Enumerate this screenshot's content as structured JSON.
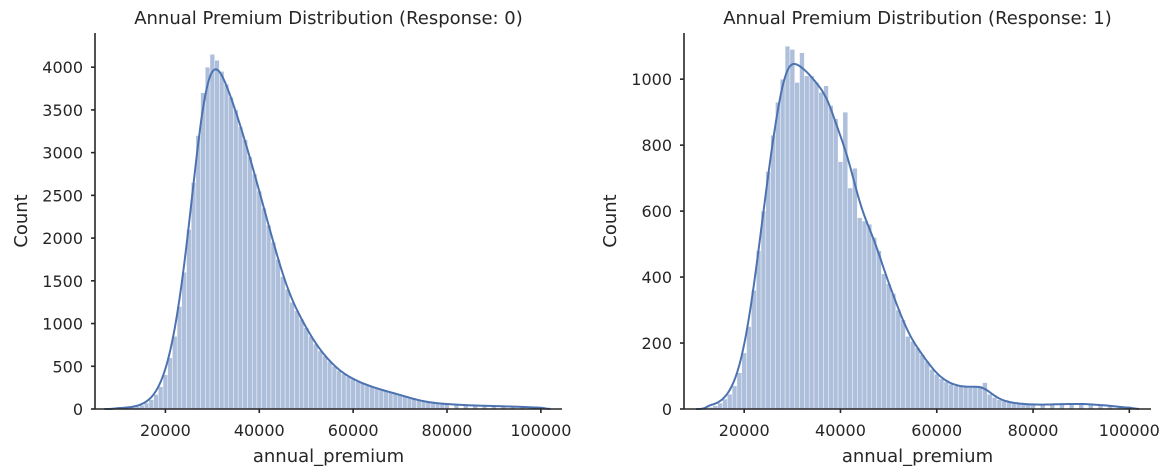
{
  "figure": {
    "background": "#ffffff"
  },
  "style": {
    "series_color": "#4c72b0",
    "axis_color": "#262626"
  },
  "chart_data": [
    {
      "type": "histogram",
      "title": "Annual Premium Distribution (Response: 0)",
      "xlabel": "annual_premium",
      "ylabel": "Count",
      "xlim": [
        5000,
        104500
      ],
      "ylim": [
        0,
        4400
      ],
      "xticks": [
        20000,
        40000,
        60000,
        80000,
        100000
      ],
      "yticks": [
        0,
        500,
        1000,
        1500,
        2000,
        2500,
        3000,
        3500,
        4000
      ],
      "grid": false,
      "kde": true,
      "bin_width": 1000,
      "bins": [
        {
          "x": 10000,
          "count": 5
        },
        {
          "x": 11000,
          "count": 10
        },
        {
          "x": 12000,
          "count": 15
        },
        {
          "x": 13000,
          "count": 22
        },
        {
          "x": 14000,
          "count": 32
        },
        {
          "x": 15000,
          "count": 45
        },
        {
          "x": 16000,
          "count": 70
        },
        {
          "x": 17000,
          "count": 110
        },
        {
          "x": 18000,
          "count": 170
        },
        {
          "x": 19000,
          "count": 260
        },
        {
          "x": 20000,
          "count": 400
        },
        {
          "x": 21000,
          "count": 600
        },
        {
          "x": 22000,
          "count": 850
        },
        {
          "x": 23000,
          "count": 1200
        },
        {
          "x": 24000,
          "count": 1600
        },
        {
          "x": 25000,
          "count": 2100
        },
        {
          "x": 26000,
          "count": 2650
        },
        {
          "x": 27000,
          "count": 3200
        },
        {
          "x": 28000,
          "count": 3700
        },
        {
          "x": 29000,
          "count": 4000
        },
        {
          "x": 30000,
          "count": 4150
        },
        {
          "x": 31000,
          "count": 4080
        },
        {
          "x": 32000,
          "count": 3950
        },
        {
          "x": 33000,
          "count": 3800
        },
        {
          "x": 34000,
          "count": 3650
        },
        {
          "x": 35000,
          "count": 3500
        },
        {
          "x": 36000,
          "count": 3300
        },
        {
          "x": 37000,
          "count": 3150
        },
        {
          "x": 38000,
          "count": 2950
        },
        {
          "x": 39000,
          "count": 2750
        },
        {
          "x": 40000,
          "count": 2550
        },
        {
          "x": 41000,
          "count": 2350
        },
        {
          "x": 42000,
          "count": 2150
        },
        {
          "x": 43000,
          "count": 1950
        },
        {
          "x": 44000,
          "count": 1750
        },
        {
          "x": 45000,
          "count": 1550
        },
        {
          "x": 46000,
          "count": 1400
        },
        {
          "x": 47000,
          "count": 1250
        },
        {
          "x": 48000,
          "count": 1150
        },
        {
          "x": 49000,
          "count": 1050
        },
        {
          "x": 50000,
          "count": 950
        },
        {
          "x": 51000,
          "count": 850
        },
        {
          "x": 52000,
          "count": 760
        },
        {
          "x": 53000,
          "count": 680
        },
        {
          "x": 54000,
          "count": 620
        },
        {
          "x": 55000,
          "count": 560
        },
        {
          "x": 56000,
          "count": 500
        },
        {
          "x": 57000,
          "count": 450
        },
        {
          "x": 58000,
          "count": 410
        },
        {
          "x": 59000,
          "count": 380
        },
        {
          "x": 60000,
          "count": 350
        },
        {
          "x": 61000,
          "count": 320
        },
        {
          "x": 62000,
          "count": 300
        },
        {
          "x": 63000,
          "count": 280
        },
        {
          "x": 64000,
          "count": 260
        },
        {
          "x": 65000,
          "count": 240
        },
        {
          "x": 66000,
          "count": 225
        },
        {
          "x": 67000,
          "count": 210
        },
        {
          "x": 68000,
          "count": 195
        },
        {
          "x": 69000,
          "count": 180
        },
        {
          "x": 70000,
          "count": 165
        },
        {
          "x": 71000,
          "count": 150
        },
        {
          "x": 72000,
          "count": 130
        },
        {
          "x": 73000,
          "count": 115
        },
        {
          "x": 74000,
          "count": 100
        },
        {
          "x": 75000,
          "count": 90
        },
        {
          "x": 76000,
          "count": 80
        },
        {
          "x": 77000,
          "count": 72
        },
        {
          "x": 78000,
          "count": 66
        },
        {
          "x": 79000,
          "count": 60
        },
        {
          "x": 80000,
          "count": 55
        },
        {
          "x": 82000,
          "count": 50
        },
        {
          "x": 84000,
          "count": 45
        },
        {
          "x": 86000,
          "count": 40
        },
        {
          "x": 88000,
          "count": 38
        },
        {
          "x": 90000,
          "count": 35
        },
        {
          "x": 92000,
          "count": 32
        },
        {
          "x": 94000,
          "count": 28
        },
        {
          "x": 96000,
          "count": 25
        },
        {
          "x": 98000,
          "count": 20
        },
        {
          "x": 100000,
          "count": 12
        }
      ]
    },
    {
      "type": "histogram",
      "title": "Annual Premium Distribution (Response: 1)",
      "xlabel": "annual_premium",
      "ylabel": "Count",
      "xlim": [
        7500,
        104500
      ],
      "ylim": [
        0,
        1140
      ],
      "xticks": [
        20000,
        40000,
        60000,
        80000,
        100000
      ],
      "yticks": [
        0,
        200,
        400,
        600,
        800,
        1000
      ],
      "grid": false,
      "kde": true,
      "bin_width": 1000,
      "bins": [
        {
          "x": 13000,
          "count": 5
        },
        {
          "x": 14000,
          "count": 10
        },
        {
          "x": 15000,
          "count": 18
        },
        {
          "x": 16000,
          "count": 30
        },
        {
          "x": 17000,
          "count": 45
        },
        {
          "x": 18000,
          "count": 70
        },
        {
          "x": 19000,
          "count": 110
        },
        {
          "x": 20000,
          "count": 170
        },
        {
          "x": 21000,
          "count": 250
        },
        {
          "x": 22000,
          "count": 360
        },
        {
          "x": 23000,
          "count": 480
        },
        {
          "x": 24000,
          "count": 600
        },
        {
          "x": 25000,
          "count": 720
        },
        {
          "x": 26000,
          "count": 830
        },
        {
          "x": 27000,
          "count": 930
        },
        {
          "x": 28000,
          "count": 1000
        },
        {
          "x": 29000,
          "count": 1100
        },
        {
          "x": 30000,
          "count": 1090
        },
        {
          "x": 31000,
          "count": 990
        },
        {
          "x": 32000,
          "count": 1080
        },
        {
          "x": 33000,
          "count": 1010
        },
        {
          "x": 34000,
          "count": 1010
        },
        {
          "x": 35000,
          "count": 990
        },
        {
          "x": 36000,
          "count": 960
        },
        {
          "x": 37000,
          "count": 980
        },
        {
          "x": 38000,
          "count": 920
        },
        {
          "x": 39000,
          "count": 880
        },
        {
          "x": 40000,
          "count": 750
        },
        {
          "x": 41000,
          "count": 900
        },
        {
          "x": 42000,
          "count": 670
        },
        {
          "x": 43000,
          "count": 730
        },
        {
          "x": 44000,
          "count": 580
        },
        {
          "x": 45000,
          "count": 570
        },
        {
          "x": 46000,
          "count": 560
        },
        {
          "x": 47000,
          "count": 520
        },
        {
          "x": 48000,
          "count": 480
        },
        {
          "x": 49000,
          "count": 410
        },
        {
          "x": 50000,
          "count": 380
        },
        {
          "x": 51000,
          "count": 350
        },
        {
          "x": 52000,
          "count": 300
        },
        {
          "x": 53000,
          "count": 270
        },
        {
          "x": 54000,
          "count": 220
        },
        {
          "x": 55000,
          "count": 205
        },
        {
          "x": 56000,
          "count": 185
        },
        {
          "x": 57000,
          "count": 165
        },
        {
          "x": 58000,
          "count": 145
        },
        {
          "x": 59000,
          "count": 120
        },
        {
          "x": 60000,
          "count": 105
        },
        {
          "x": 61000,
          "count": 92
        },
        {
          "x": 62000,
          "count": 82
        },
        {
          "x": 63000,
          "count": 75
        },
        {
          "x": 64000,
          "count": 70
        },
        {
          "x": 65000,
          "count": 68
        },
        {
          "x": 66000,
          "count": 66
        },
        {
          "x": 67000,
          "count": 65
        },
        {
          "x": 68000,
          "count": 68
        },
        {
          "x": 69000,
          "count": 70
        },
        {
          "x": 70000,
          "count": 80
        },
        {
          "x": 71000,
          "count": 45
        },
        {
          "x": 72000,
          "count": 35
        },
        {
          "x": 73000,
          "count": 28
        },
        {
          "x": 74000,
          "count": 24
        },
        {
          "x": 75000,
          "count": 20
        },
        {
          "x": 76000,
          "count": 18
        },
        {
          "x": 77000,
          "count": 16
        },
        {
          "x": 78000,
          "count": 15
        },
        {
          "x": 79000,
          "count": 14
        },
        {
          "x": 80000,
          "count": 13
        },
        {
          "x": 82000,
          "count": 13
        },
        {
          "x": 84000,
          "count": 14
        },
        {
          "x": 86000,
          "count": 15
        },
        {
          "x": 88000,
          "count": 15
        },
        {
          "x": 90000,
          "count": 16
        },
        {
          "x": 92000,
          "count": 14
        },
        {
          "x": 94000,
          "count": 12
        },
        {
          "x": 96000,
          "count": 10
        },
        {
          "x": 98000,
          "count": 6
        },
        {
          "x": 100000,
          "count": 3
        }
      ]
    }
  ]
}
